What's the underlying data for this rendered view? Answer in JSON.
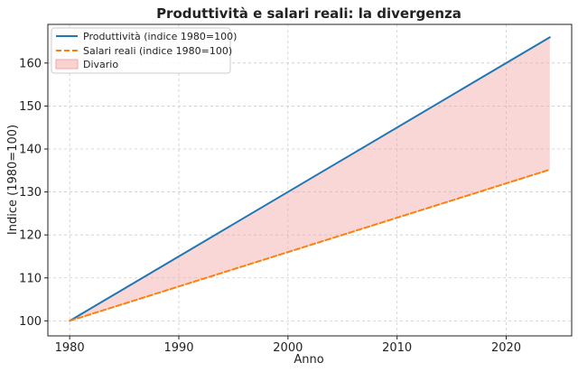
{
  "chart_data": {
    "type": "line",
    "title": "Produttività e salari reali: la divergenza",
    "xlabel": "Anno",
    "ylabel": "Indice (1980=100)",
    "xlim": [
      1978,
      2026
    ],
    "ylim": [
      96.5,
      169
    ],
    "x_ticks": [
      1980,
      1990,
      2000,
      2010,
      2020
    ],
    "y_ticks": [
      100,
      110,
      120,
      130,
      140,
      150,
      160
    ],
    "grid": true,
    "legend_position": "top-left",
    "x": [
      1980,
      2024
    ],
    "series": [
      {
        "name": "Produttività (indice 1980=100)",
        "values": [
          100,
          166
        ],
        "color": "#1f77b4",
        "style": "solid"
      },
      {
        "name": "Salari reali (indice 1980=100)",
        "values": [
          100,
          135.2
        ],
        "color": "#ff7f0e",
        "style": "dashed"
      }
    ],
    "fill": {
      "name": "Divario",
      "between": [
        "Produttività (indice 1980=100)",
        "Salari reali (indice 1980=100)"
      ],
      "color": "#f4a6a6"
    }
  }
}
